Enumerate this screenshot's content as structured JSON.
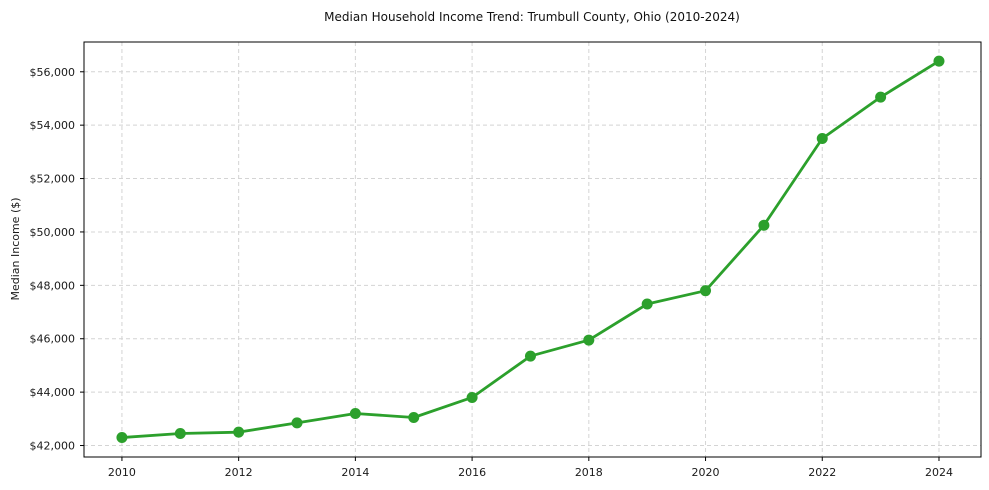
{
  "chart_data": {
    "type": "line",
    "title": "Median Household Income Trend: Trumbull County, Ohio (2010-2024)",
    "xlabel": "",
    "ylabel": "Median Income ($)",
    "x": [
      2010,
      2011,
      2012,
      2013,
      2014,
      2015,
      2016,
      2017,
      2018,
      2019,
      2020,
      2021,
      2022,
      2023,
      2024
    ],
    "series": [
      {
        "name": "Median Household Income",
        "values": [
          42300,
          42450,
          42500,
          42850,
          43200,
          43050,
          43800,
          45350,
          45950,
          47300,
          47800,
          50250,
          53500,
          55050,
          56400
        ],
        "color": "#2ca02c",
        "marker": "circle",
        "marker_fill": "#2ca02c"
      }
    ],
    "xticks": {
      "values": [
        2010,
        2012,
        2014,
        2016,
        2018,
        2020,
        2022,
        2024
      ],
      "labels": [
        "2010",
        "2012",
        "2014",
        "2016",
        "2018",
        "2020",
        "2022",
        "2024"
      ]
    },
    "yticks": {
      "values": [
        42000,
        44000,
        46000,
        48000,
        50000,
        52000,
        54000,
        56000
      ],
      "labels": [
        "$42,000",
        "$44,000",
        "$46,000",
        "$48,000",
        "$50,000",
        "$52,000",
        "$54,000",
        "$56,000"
      ]
    },
    "xlim": [
      2009.35,
      2024.72
    ],
    "ylim": [
      41570,
      57115
    ],
    "grid": true,
    "grid_style": "dashed",
    "grid_color": "#d4d4d4",
    "axis_color": "#000000",
    "text_color": "#1a1a1a",
    "background": "#ffffff",
    "legend": "none"
  }
}
